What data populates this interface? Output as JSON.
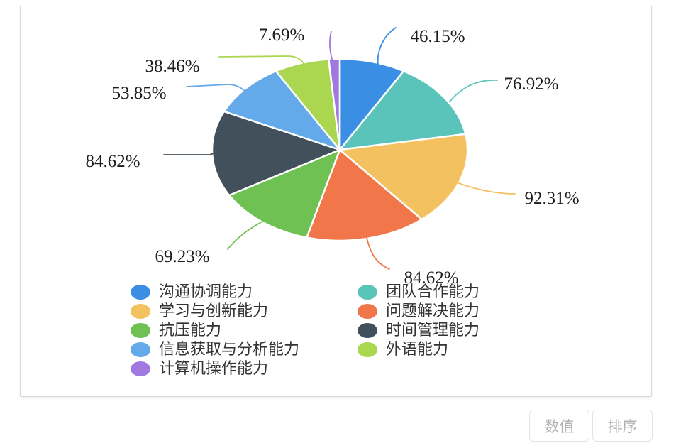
{
  "chart_data": {
    "type": "pie",
    "title": "",
    "legend_position": "bottom-left, two columns",
    "slices": [
      {
        "name": "沟通协调能力",
        "value": 46.15,
        "label": "46.15%",
        "color": "#3A8FE4"
      },
      {
        "name": "团队合作能力",
        "value": 76.92,
        "label": "76.92%",
        "color": "#5BC4BA"
      },
      {
        "name": "学习与创新能力",
        "value": 92.31,
        "label": "92.31%",
        "color": "#F3C15F"
      },
      {
        "name": "问题解决能力",
        "value": 84.62,
        "label": "84.62%",
        "color": "#F1774B"
      },
      {
        "name": "抗压能力",
        "value": 69.23,
        "label": "69.23%",
        "color": "#6EC152"
      },
      {
        "name": "时间管理能力",
        "value": 84.62,
        "label": "84.62%",
        "color": "#41505B"
      },
      {
        "name": "信息获取与分析能力",
        "value": 53.85,
        "label": "53.85%",
        "color": "#64AAEA"
      },
      {
        "name": "外语能力",
        "value": 38.46,
        "label": "38.46%",
        "color": "#ABD64F"
      },
      {
        "name": "计算机操作能力",
        "value": 7.69,
        "label": "7.69%",
        "color": "#A078DF"
      }
    ],
    "slice_label_format": "percent",
    "angles_proportional_to_values": true
  },
  "buttons": {
    "numeric_label": "数值",
    "sort_label": "排序"
  }
}
